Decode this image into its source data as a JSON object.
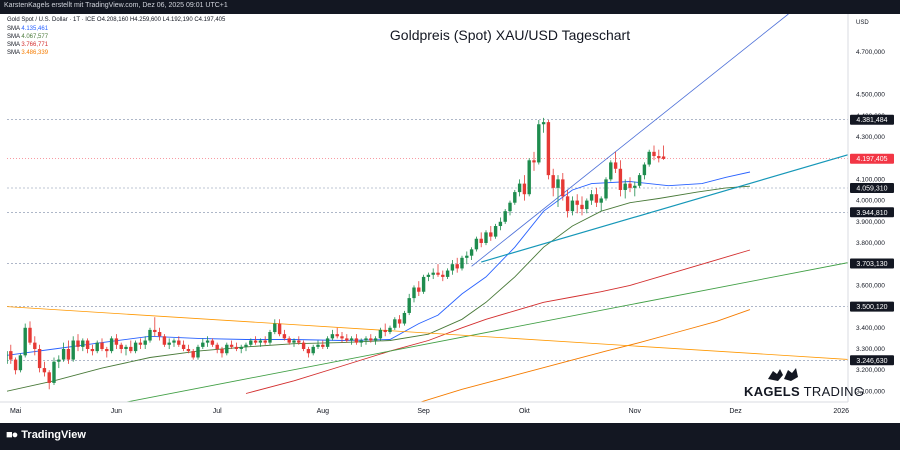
{
  "header_line": "KarstenKagels erstellt mit TradingView.com, Dez 06, 2025 09:01 UTC+1",
  "symbol_line": "Gold Spot / U.S. Dollar · 1T · ICE  O4.208,160  H4.259,600  L4.192,190  C4.197,405",
  "sma_lines": [
    {
      "label": "SMA",
      "value": "4.135,461",
      "color": "#2962ff"
    },
    {
      "label": "SMA",
      "value": "4.067,577",
      "color": "#4a7a3a"
    },
    {
      "label": "SMA",
      "value": "3.766,771",
      "color": "#d32f2f"
    },
    {
      "label": "SMA",
      "value": "3.486,339",
      "color": "#f57c00"
    }
  ],
  "brand_name": "TradingView",
  "watermark": {
    "bold": "KAGELS",
    "light": " TRADING"
  },
  "chart_data": {
    "type": "candlestick",
    "title": "Goldpreis (Spot) XAU/USD Tageschart",
    "currency": "USD",
    "ylim": [
      3050,
      4880
    ],
    "y_ticks": [
      {
        "v": 3100,
        "label": "3.100,000"
      },
      {
        "v": 3200,
        "label": "3.200,000"
      },
      {
        "v": 3300,
        "label": "3.300,000"
      },
      {
        "v": 3400,
        "label": "3.400,000"
      },
      {
        "v": 3600,
        "label": "3.600,000"
      },
      {
        "v": 3800,
        "label": "3.800,000"
      },
      {
        "v": 3900,
        "label": "3.900,000"
      },
      {
        "v": 4000,
        "label": "4.000,000"
      },
      {
        "v": 4100,
        "label": "4.100,000"
      },
      {
        "v": 4300,
        "label": "4.300,000"
      },
      {
        "v": 4400,
        "label": "4.400,000"
      },
      {
        "v": 4500,
        "label": "4.500,000"
      },
      {
        "v": 4700,
        "label": "4.700,000"
      }
    ],
    "x_ticks": [
      {
        "i": 2,
        "label": "Mai"
      },
      {
        "i": 23,
        "label": "Jun"
      },
      {
        "i": 44,
        "label": "Jul"
      },
      {
        "i": 66,
        "label": "Aug"
      },
      {
        "i": 87,
        "label": "Sep"
      },
      {
        "i": 108,
        "label": "Okt"
      },
      {
        "i": 131,
        "label": "Nov"
      },
      {
        "i": 152,
        "label": "Dez"
      },
      {
        "i": 174,
        "label": "2026"
      }
    ],
    "levels": [
      {
        "v": 4381.484,
        "label": "4.381,484",
        "color": "#131722"
      },
      {
        "v": 4059.31,
        "label": "4.059,310",
        "color": "#131722"
      },
      {
        "v": 3944.81,
        "label": "3.944,810",
        "color": "#131722"
      },
      {
        "v": 3703.13,
        "label": "3.703,130",
        "color": "#131722"
      },
      {
        "v": 3500.12,
        "label": "3.500,120",
        "color": "#131722"
      },
      {
        "v": 3246.63,
        "label": "3.246,630",
        "color": "#131722"
      }
    ],
    "last_price": {
      "v": 4197.405,
      "label": "4.197,405",
      "color": "#f23645"
    },
    "trendlines": [
      {
        "name": "blue-channel-upper",
        "i1": 97,
        "v1": 3690,
        "i2": 163,
        "v2": 4880,
        "color": "#4c6fd8",
        "width": 0.8
      },
      {
        "name": "teal-support",
        "i1": 99,
        "v1": 3710,
        "i2": 176,
        "v2": 4220,
        "color": "#1597b8",
        "width": 1.2
      },
      {
        "name": "green-trend",
        "i1": 0,
        "v1": 2940,
        "i2": 176,
        "v2": 3710,
        "color": "#43a047",
        "width": 0.9
      },
      {
        "name": "orange-trend",
        "i1": 0,
        "v1": 3500,
        "i2": 176,
        "v2": 3250,
        "color": "#ff9800",
        "width": 0.8
      }
    ],
    "series": [
      {
        "name": "SMA 4.135,461",
        "color": "#2962ff",
        "values": [
          [
            0,
            3270
          ],
          [
            10,
            3300
          ],
          [
            20,
            3330
          ],
          [
            30,
            3360
          ],
          [
            40,
            3350
          ],
          [
            50,
            3345
          ],
          [
            60,
            3345
          ],
          [
            70,
            3340
          ],
          [
            80,
            3345
          ],
          [
            86,
            3420
          ],
          [
            90,
            3460
          ],
          [
            95,
            3560
          ],
          [
            100,
            3640
          ],
          [
            106,
            3780
          ],
          [
            112,
            3950
          ],
          [
            118,
            4050
          ],
          [
            122,
            4080
          ],
          [
            130,
            4090
          ],
          [
            138,
            4070
          ],
          [
            145,
            4080
          ],
          [
            150,
            4110
          ],
          [
            155,
            4135
          ]
        ]
      },
      {
        "name": "SMA 4.067,577",
        "color": "#4a7a3a",
        "values": [
          [
            0,
            3100
          ],
          [
            10,
            3150
          ],
          [
            20,
            3210
          ],
          [
            30,
            3260
          ],
          [
            40,
            3290
          ],
          [
            50,
            3310
          ],
          [
            60,
            3325
          ],
          [
            70,
            3330
          ],
          [
            80,
            3340
          ],
          [
            88,
            3370
          ],
          [
            95,
            3440
          ],
          [
            100,
            3520
          ],
          [
            106,
            3640
          ],
          [
            112,
            3780
          ],
          [
            118,
            3880
          ],
          [
            124,
            3950
          ],
          [
            130,
            3990
          ],
          [
            136,
            4010
          ],
          [
            144,
            4040
          ],
          [
            150,
            4060
          ],
          [
            155,
            4068
          ]
        ]
      },
      {
        "name": "SMA 3.766,771",
        "color": "#d32f2f",
        "values": [
          [
            50,
            3090
          ],
          [
            60,
            3150
          ],
          [
            70,
            3220
          ],
          [
            80,
            3290
          ],
          [
            88,
            3340
          ],
          [
            95,
            3400
          ],
          [
            100,
            3440
          ],
          [
            106,
            3480
          ],
          [
            112,
            3520
          ],
          [
            118,
            3545
          ],
          [
            124,
            3570
          ],
          [
            130,
            3600
          ],
          [
            136,
            3640
          ],
          [
            142,
            3680
          ],
          [
            148,
            3720
          ],
          [
            155,
            3767
          ]
        ]
      },
      {
        "name": "SMA 3.486,339",
        "color": "#f57c00",
        "values": [
          [
            85,
            3040
          ],
          [
            95,
            3110
          ],
          [
            105,
            3170
          ],
          [
            115,
            3230
          ],
          [
            125,
            3290
          ],
          [
            132,
            3330
          ],
          [
            140,
            3380
          ],
          [
            148,
            3430
          ],
          [
            155,
            3486
          ]
        ]
      }
    ],
    "candles": [
      [
        3230,
        3310,
        3200,
        3290
      ],
      [
        3290,
        3320,
        3230,
        3250
      ],
      [
        3250,
        3260,
        3180,
        3200
      ],
      [
        3200,
        3280,
        3190,
        3270
      ],
      [
        3270,
        3420,
        3260,
        3400
      ],
      [
        3400,
        3430,
        3320,
        3330
      ],
      [
        3330,
        3360,
        3270,
        3300
      ],
      [
        3300,
        3320,
        3190,
        3210
      ],
      [
        3210,
        3240,
        3170,
        3190
      ],
      [
        3190,
        3200,
        3110,
        3140
      ],
      [
        3140,
        3260,
        3130,
        3240
      ],
      [
        3240,
        3270,
        3210,
        3250
      ],
      [
        3250,
        3330,
        3240,
        3300
      ],
      [
        3300,
        3340,
        3230,
        3250
      ],
      [
        3250,
        3360,
        3240,
        3340
      ],
      [
        3340,
        3370,
        3290,
        3310
      ],
      [
        3310,
        3350,
        3290,
        3340
      ],
      [
        3340,
        3350,
        3280,
        3300
      ],
      [
        3300,
        3320,
        3270,
        3290
      ],
      [
        3290,
        3340,
        3280,
        3330
      ],
      [
        3330,
        3350,
        3290,
        3300
      ],
      [
        3300,
        3310,
        3260,
        3290
      ],
      [
        3290,
        3360,
        3280,
        3350
      ],
      [
        3350,
        3370,
        3300,
        3320
      ],
      [
        3320,
        3330,
        3280,
        3300
      ],
      [
        3300,
        3320,
        3270,
        3310
      ],
      [
        3310,
        3340,
        3280,
        3290
      ],
      [
        3290,
        3340,
        3280,
        3330
      ],
      [
        3330,
        3350,
        3300,
        3320
      ],
      [
        3320,
        3360,
        3300,
        3340
      ],
      [
        3340,
        3400,
        3330,
        3390
      ],
      [
        3390,
        3450,
        3360,
        3380
      ],
      [
        3380,
        3400,
        3340,
        3360
      ],
      [
        3360,
        3370,
        3310,
        3320
      ],
      [
        3320,
        3350,
        3300,
        3330
      ],
      [
        3330,
        3350,
        3310,
        3340
      ],
      [
        3340,
        3360,
        3310,
        3320
      ],
      [
        3320,
        3340,
        3290,
        3300
      ],
      [
        3300,
        3320,
        3280,
        3290
      ],
      [
        3290,
        3300,
        3250,
        3260
      ],
      [
        3260,
        3320,
        3250,
        3310
      ],
      [
        3310,
        3350,
        3300,
        3330
      ],
      [
        3330,
        3360,
        3310,
        3340
      ],
      [
        3340,
        3350,
        3310,
        3320
      ],
      [
        3320,
        3330,
        3280,
        3300
      ],
      [
        3300,
        3310,
        3260,
        3280
      ],
      [
        3280,
        3330,
        3270,
        3320
      ],
      [
        3320,
        3340,
        3300,
        3310
      ],
      [
        3310,
        3330,
        3290,
        3300
      ],
      [
        3300,
        3320,
        3280,
        3310
      ],
      [
        3310,
        3330,
        3290,
        3320
      ],
      [
        3320,
        3350,
        3310,
        3340
      ],
      [
        3340,
        3360,
        3320,
        3330
      ],
      [
        3330,
        3350,
        3310,
        3340
      ],
      [
        3340,
        3360,
        3320,
        3330
      ],
      [
        3330,
        3390,
        3320,
        3380
      ],
      [
        3380,
        3440,
        3370,
        3420
      ],
      [
        3420,
        3440,
        3360,
        3370
      ],
      [
        3370,
        3390,
        3340,
        3350
      ],
      [
        3350,
        3360,
        3320,
        3330
      ],
      [
        3330,
        3350,
        3310,
        3340
      ],
      [
        3340,
        3360,
        3320,
        3330
      ],
      [
        3330,
        3340,
        3290,
        3300
      ],
      [
        3300,
        3310,
        3260,
        3280
      ],
      [
        3280,
        3320,
        3270,
        3310
      ],
      [
        3310,
        3340,
        3300,
        3320
      ],
      [
        3320,
        3340,
        3300,
        3310
      ],
      [
        3310,
        3360,
        3300,
        3350
      ],
      [
        3350,
        3390,
        3340,
        3370
      ],
      [
        3370,
        3400,
        3350,
        3360
      ],
      [
        3360,
        3380,
        3330,
        3350
      ],
      [
        3350,
        3370,
        3330,
        3340
      ],
      [
        3340,
        3360,
        3320,
        3350
      ],
      [
        3350,
        3370,
        3320,
        3330
      ],
      [
        3330,
        3350,
        3310,
        3340
      ],
      [
        3340,
        3360,
        3320,
        3350
      ],
      [
        3350,
        3370,
        3330,
        3340
      ],
      [
        3340,
        3360,
        3320,
        3350
      ],
      [
        3350,
        3400,
        3340,
        3390
      ],
      [
        3390,
        3420,
        3360,
        3380
      ],
      [
        3380,
        3410,
        3370,
        3400
      ],
      [
        3400,
        3450,
        3390,
        3440
      ],
      [
        3440,
        3460,
        3400,
        3420
      ],
      [
        3420,
        3480,
        3410,
        3470
      ],
      [
        3470,
        3560,
        3460,
        3540
      ],
      [
        3540,
        3600,
        3520,
        3590
      ],
      [
        3590,
        3620,
        3550,
        3570
      ],
      [
        3570,
        3650,
        3560,
        3640
      ],
      [
        3640,
        3660,
        3620,
        3650
      ],
      [
        3650,
        3680,
        3630,
        3660
      ],
      [
        3660,
        3700,
        3640,
        3650
      ],
      [
        3650,
        3670,
        3620,
        3640
      ],
      [
        3640,
        3680,
        3630,
        3670
      ],
      [
        3670,
        3720,
        3650,
        3700
      ],
      [
        3700,
        3730,
        3660,
        3680
      ],
      [
        3680,
        3740,
        3670,
        3730
      ],
      [
        3730,
        3760,
        3700,
        3740
      ],
      [
        3740,
        3780,
        3720,
        3770
      ],
      [
        3770,
        3830,
        3760,
        3820
      ],
      [
        3820,
        3850,
        3780,
        3800
      ],
      [
        3800,
        3860,
        3790,
        3850
      ],
      [
        3850,
        3880,
        3810,
        3830
      ],
      [
        3830,
        3890,
        3820,
        3880
      ],
      [
        3880,
        3920,
        3860,
        3900
      ],
      [
        3900,
        3960,
        3890,
        3950
      ],
      [
        3950,
        4000,
        3930,
        3990
      ],
      [
        3990,
        4050,
        3980,
        4040
      ],
      [
        4040,
        4100,
        4020,
        4080
      ],
      [
        4080,
        4120,
        4000,
        4030
      ],
      [
        4030,
        4200,
        4020,
        4190
      ],
      [
        4190,
        4230,
        4140,
        4180
      ],
      [
        4180,
        4380,
        4170,
        4360
      ],
      [
        4360,
        4390,
        4320,
        4370
      ],
      [
        4370,
        4380,
        4100,
        4120
      ],
      [
        4120,
        4150,
        4020,
        4060
      ],
      [
        4060,
        4120,
        3970,
        4100
      ],
      [
        4100,
        4130,
        4000,
        4020
      ],
      [
        4020,
        4050,
        3920,
        3950
      ],
      [
        3950,
        4020,
        3930,
        4000
      ],
      [
        4000,
        4030,
        3940,
        3980
      ],
      [
        3980,
        4020,
        3930,
        3960
      ],
      [
        3960,
        4010,
        3940,
        4000
      ],
      [
        4000,
        4050,
        3980,
        4030
      ],
      [
        4030,
        4060,
        3970,
        3990
      ],
      [
        3990,
        4020,
        3950,
        4010
      ],
      [
        4010,
        4110,
        4000,
        4100
      ],
      [
        4100,
        4190,
        4090,
        4180
      ],
      [
        4180,
        4230,
        4130,
        4150
      ],
      [
        4150,
        4190,
        4020,
        4050
      ],
      [
        4050,
        4100,
        4010,
        4080
      ],
      [
        4080,
        4110,
        4040,
        4060
      ],
      [
        4060,
        4090,
        4020,
        4070
      ],
      [
        4070,
        4130,
        4060,
        4120
      ],
      [
        4120,
        4180,
        4100,
        4170
      ],
      [
        4170,
        4240,
        4160,
        4230
      ],
      [
        4230,
        4260,
        4190,
        4210
      ],
      [
        4210,
        4240,
        4180,
        4200
      ],
      [
        4208,
        4260,
        4192,
        4197
      ]
    ]
  }
}
